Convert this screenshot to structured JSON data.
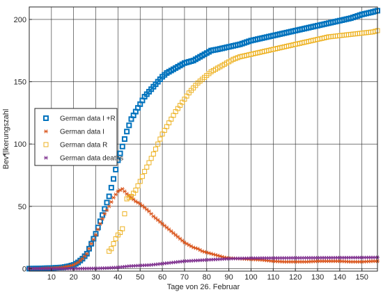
{
  "chart_data": {
    "type": "scatter",
    "title": "",
    "xlabel": "Tage von 26. Februar",
    "ylabel": "Bev¶lkerungszahl",
    "xlim": [
      0,
      157
    ],
    "ylim": [
      -2,
      210
    ],
    "xticks": [
      10,
      20,
      30,
      40,
      50,
      60,
      70,
      80,
      90,
      100,
      110,
      120,
      130,
      140,
      150
    ],
    "yticks": [
      0,
      50,
      100,
      150,
      200
    ],
    "grid": true,
    "legend_position": "left-middle",
    "series": [
      {
        "name": "German data I +R",
        "marker": "square-thick",
        "color": "#0072bd",
        "points": [
          [
            0,
            0
          ],
          [
            5,
            0.2
          ],
          [
            10,
            0.5
          ],
          [
            15,
            1
          ],
          [
            18,
            2
          ],
          [
            20,
            3
          ],
          [
            22,
            5
          ],
          [
            24,
            8
          ],
          [
            26,
            12
          ],
          [
            28,
            20
          ],
          [
            30,
            28
          ],
          [
            32,
            38
          ],
          [
            34,
            48
          ],
          [
            36,
            58
          ],
          [
            38,
            72
          ],
          [
            40,
            87
          ],
          [
            42,
            98
          ],
          [
            44,
            110
          ],
          [
            46,
            120
          ],
          [
            48,
            126
          ],
          [
            50,
            132
          ],
          [
            52,
            138
          ],
          [
            54,
            142
          ],
          [
            56,
            146
          ],
          [
            58,
            150
          ],
          [
            60,
            154
          ],
          [
            62,
            157
          ],
          [
            64,
            159
          ],
          [
            66,
            161
          ],
          [
            68,
            163
          ],
          [
            70,
            165
          ],
          [
            72,
            166
          ],
          [
            74,
            167
          ],
          [
            76,
            169
          ],
          [
            78,
            171
          ],
          [
            80,
            173
          ],
          [
            82,
            175
          ],
          [
            85,
            176
          ],
          [
            90,
            178
          ],
          [
            95,
            180
          ],
          [
            100,
            183
          ],
          [
            105,
            185
          ],
          [
            110,
            187
          ],
          [
            115,
            189
          ],
          [
            120,
            191
          ],
          [
            125,
            193
          ],
          [
            130,
            195
          ],
          [
            135,
            197
          ],
          [
            140,
            199
          ],
          [
            145,
            201
          ],
          [
            150,
            204
          ],
          [
            155,
            206
          ],
          [
            157,
            207
          ]
        ]
      },
      {
        "name": "German data I",
        "marker": "asterisk",
        "color": "#d95319",
        "points": [
          [
            0,
            0
          ],
          [
            5,
            0.2
          ],
          [
            10,
            0.5
          ],
          [
            15,
            1
          ],
          [
            18,
            2
          ],
          [
            20,
            3
          ],
          [
            22,
            5
          ],
          [
            24,
            8
          ],
          [
            26,
            12
          ],
          [
            28,
            20
          ],
          [
            30,
            27
          ],
          [
            32,
            36
          ],
          [
            34,
            44
          ],
          [
            36,
            50
          ],
          [
            38,
            57
          ],
          [
            40,
            62
          ],
          [
            42,
            64
          ],
          [
            44,
            60
          ],
          [
            46,
            57
          ],
          [
            48,
            54
          ],
          [
            50,
            52
          ],
          [
            52,
            49
          ],
          [
            54,
            46
          ],
          [
            56,
            42
          ],
          [
            58,
            39
          ],
          [
            60,
            36
          ],
          [
            62,
            33
          ],
          [
            64,
            30
          ],
          [
            66,
            27
          ],
          [
            68,
            24
          ],
          [
            70,
            21
          ],
          [
            72,
            19
          ],
          [
            74,
            17
          ],
          [
            76,
            16
          ],
          [
            78,
            14
          ],
          [
            80,
            13
          ],
          [
            82,
            12
          ],
          [
            84,
            11
          ],
          [
            86,
            10
          ],
          [
            88,
            9
          ],
          [
            90,
            8.5
          ],
          [
            95,
            8
          ],
          [
            100,
            7.5
          ],
          [
            105,
            7
          ],
          [
            110,
            6
          ],
          [
            115,
            5.5
          ],
          [
            120,
            5.5
          ],
          [
            125,
            5.5
          ],
          [
            130,
            6
          ],
          [
            135,
            6
          ],
          [
            140,
            6
          ],
          [
            145,
            5.5
          ],
          [
            150,
            5.5
          ],
          [
            155,
            6
          ],
          [
            157,
            6
          ]
        ]
      },
      {
        "name": "German data R",
        "marker": "square",
        "color": "#edb120",
        "points": [
          [
            36,
            14
          ],
          [
            37,
            16
          ],
          [
            38,
            20
          ],
          [
            39,
            24
          ],
          [
            40,
            27
          ],
          [
            41,
            29
          ],
          [
            42,
            32
          ],
          [
            44,
            56
          ],
          [
            46,
            58
          ],
          [
            48,
            63
          ],
          [
            50,
            70
          ],
          [
            52,
            78
          ],
          [
            54,
            85
          ],
          [
            56,
            92
          ],
          [
            58,
            100
          ],
          [
            60,
            108
          ],
          [
            62,
            114
          ],
          [
            64,
            120
          ],
          [
            66,
            126
          ],
          [
            68,
            131
          ],
          [
            70,
            136
          ],
          [
            72,
            141
          ],
          [
            74,
            145
          ],
          [
            76,
            149
          ],
          [
            78,
            152
          ],
          [
            80,
            155
          ],
          [
            82,
            158
          ],
          [
            84,
            160
          ],
          [
            86,
            162
          ],
          [
            88,
            164
          ],
          [
            90,
            166
          ],
          [
            92,
            168
          ],
          [
            95,
            170
          ],
          [
            100,
            172
          ],
          [
            105,
            174
          ],
          [
            110,
            176
          ],
          [
            115,
            178
          ],
          [
            120,
            180
          ],
          [
            125,
            182
          ],
          [
            130,
            184
          ],
          [
            135,
            186
          ],
          [
            140,
            187
          ],
          [
            145,
            188
          ],
          [
            150,
            189
          ],
          [
            155,
            190
          ],
          [
            157,
            191
          ]
        ]
      },
      {
        "name": "German data deaths",
        "marker": "asterisk",
        "color": "#7e2f8e",
        "points": [
          [
            0,
            0
          ],
          [
            20,
            0
          ],
          [
            30,
            0.2
          ],
          [
            35,
            0.5
          ],
          [
            40,
            1
          ],
          [
            45,
            2
          ],
          [
            50,
            2.5
          ],
          [
            55,
            3
          ],
          [
            60,
            4
          ],
          [
            65,
            5
          ],
          [
            70,
            6
          ],
          [
            75,
            6.5
          ],
          [
            80,
            7
          ],
          [
            85,
            7.5
          ],
          [
            90,
            8
          ],
          [
            95,
            8.2
          ],
          [
            100,
            8.4
          ],
          [
            110,
            8.5
          ],
          [
            120,
            8.6
          ],
          [
            130,
            8.7
          ],
          [
            140,
            8.8
          ],
          [
            150,
            8.9
          ],
          [
            157,
            9
          ]
        ]
      }
    ]
  }
}
